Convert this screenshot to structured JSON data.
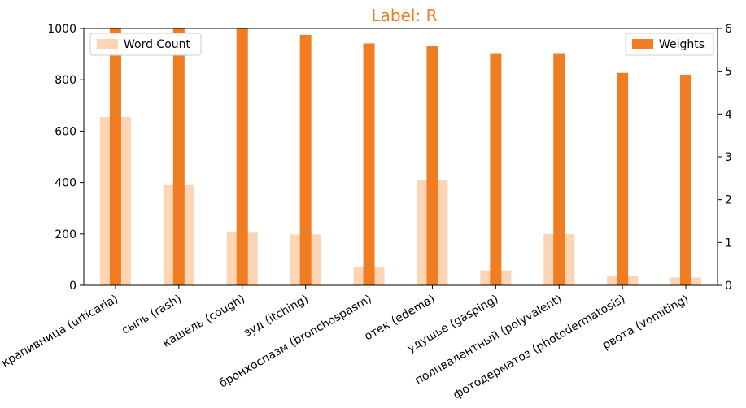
{
  "chart_data": {
    "type": "bar",
    "title": "Label: R",
    "title_color": "#f07d21",
    "categories": [
      "крапивница (urticaria)",
      "сыпь (rash)",
      "кашель (cough)",
      "зуд (itching)",
      "бронхоспазм (bronchospasm)",
      "отек (edema)",
      "удушье (gasping)",
      "поливалентный (polyvalent)",
      "фотодерматоз (photodermatosis)",
      "рвота (vomiting)"
    ],
    "series": [
      {
        "name": "Word Count",
        "axis": "left",
        "color": "#fdd5b4",
        "values": [
          655,
          390,
          205,
          198,
          72,
          410,
          58,
          200,
          35,
          30
        ]
      },
      {
        "name": "Weights",
        "axis": "right",
        "color": "#f07d21",
        "values": [
          6.2,
          6.1,
          6.0,
          5.85,
          5.65,
          5.6,
          5.42,
          5.42,
          4.96,
          4.92
        ]
      }
    ],
    "left_axis": {
      "ylim": [
        0,
        1000
      ],
      "ticks": [
        "0",
        "200",
        "400",
        "600",
        "800",
        "1000"
      ]
    },
    "right_axis": {
      "ylim": [
        0,
        6
      ],
      "ticks": [
        "0",
        "1",
        "2",
        "3",
        "4",
        "5",
        "6"
      ]
    },
    "legends": [
      {
        "series": "Word Count",
        "placement": "top-left"
      },
      {
        "series": "Weights",
        "placement": "top-right"
      }
    ],
    "grid": false
  }
}
